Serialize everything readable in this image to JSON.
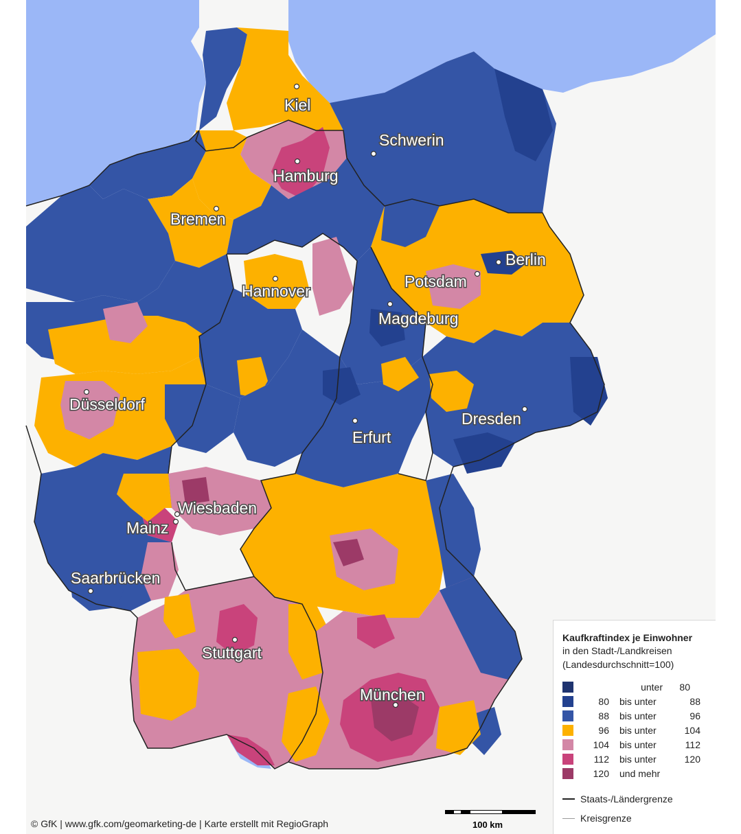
{
  "colors": {
    "sea": "#9bb7f7",
    "land_outside": "#f6f6f5",
    "class_1": "#1f3470",
    "class_2": "#23418f",
    "class_3": "#3455a6",
    "class_4": "#fdb100",
    "class_5": "#d387a6",
    "class_6": "#c9437b",
    "class_7": "#9c3a67",
    "state_border": "#222222",
    "district_border": "#9a9a9a"
  },
  "cities": [
    {
      "name": "Kiel"
    },
    {
      "name": "Schwerin"
    },
    {
      "name": "Hamburg"
    },
    {
      "name": "Bremen"
    },
    {
      "name": "Berlin"
    },
    {
      "name": "Potsdam"
    },
    {
      "name": "Hannover"
    },
    {
      "name": "Magdeburg"
    },
    {
      "name": "Düsseldorf"
    },
    {
      "name": "Dresden"
    },
    {
      "name": "Erfurt"
    },
    {
      "name": "Wiesbaden"
    },
    {
      "name": "Mainz"
    },
    {
      "name": "Saarbrücken"
    },
    {
      "name": "Stuttgart"
    },
    {
      "name": "München"
    }
  ],
  "legend": {
    "title": "Kaufkraftindex je Einwohner",
    "subtitle1": "in den Stadt-/Landkreisen",
    "subtitle2": "(Landesdurchschnitt=100)",
    "classes": [
      {
        "from": "",
        "mid": "unter",
        "to": "80",
        "color": "#1f3470"
      },
      {
        "from": "80",
        "mid": "bis unter",
        "to": "88",
        "color": "#23418f"
      },
      {
        "from": "88",
        "mid": "bis unter",
        "to": "96",
        "color": "#3455a6"
      },
      {
        "from": "96",
        "mid": "bis unter",
        "to": "104",
        "color": "#fdb100"
      },
      {
        "from": "104",
        "mid": "bis unter",
        "to": "112",
        "color": "#d387a6"
      },
      {
        "from": "112",
        "mid": "bis unter",
        "to": "120",
        "color": "#c9437b"
      },
      {
        "from": "120",
        "mid": "und mehr",
        "to": "",
        "color": "#9c3a67"
      }
    ],
    "state_border_label": "Staats-/Ländergrenze",
    "district_border_label": "Kreisgrenze"
  },
  "scale_label": "100 km",
  "credit": "© GfK | www.gfk.com/geomarketing-de | Karte erstellt mit RegioGraph"
}
